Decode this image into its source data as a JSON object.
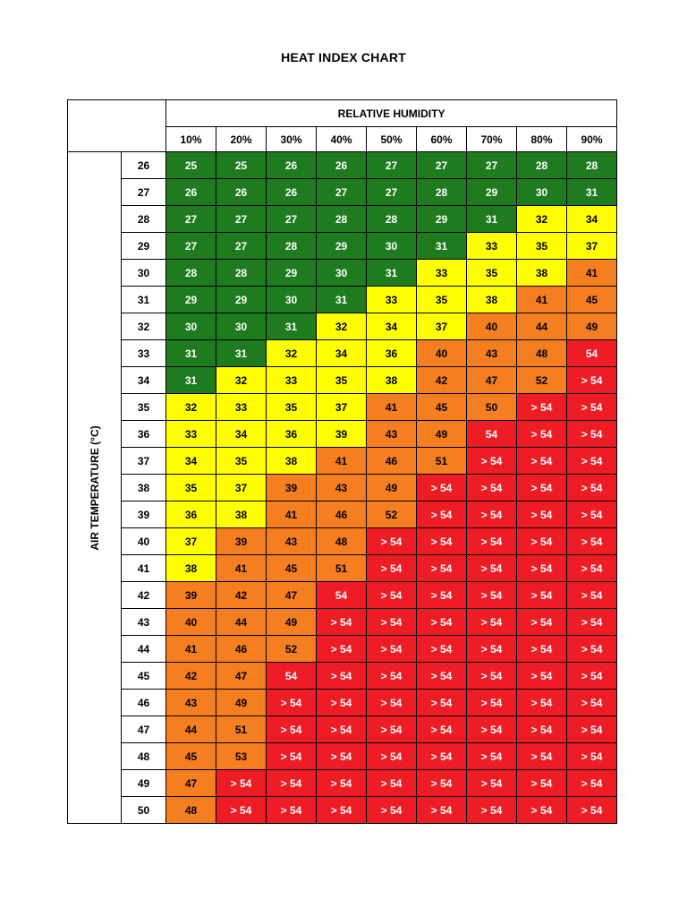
{
  "title": "HEAT INDEX CHART",
  "table": {
    "humidity_header": "RELATIVE HUMIDITY"
  },
  "chart_data": {
    "type": "heatmap",
    "title": "HEAT INDEX CHART",
    "xlabel": "RELATIVE HUMIDITY",
    "ylabel": "AIR TEMPERATURE (°C)",
    "humidities": [
      "10%",
      "20%",
      "30%",
      "40%",
      "50%",
      "60%",
      "70%",
      "80%",
      "90%"
    ],
    "temperatures": [
      26,
      27,
      28,
      29,
      30,
      31,
      32,
      33,
      34,
      35,
      36,
      37,
      38,
      39,
      40,
      41,
      42,
      43,
      44,
      45,
      46,
      47,
      48,
      49,
      50
    ],
    "values": [
      [
        25,
        25,
        26,
        26,
        27,
        27,
        27,
        28,
        28
      ],
      [
        26,
        26,
        26,
        27,
        27,
        28,
        29,
        30,
        31
      ],
      [
        27,
        27,
        27,
        28,
        28,
        29,
        31,
        32,
        34
      ],
      [
        27,
        27,
        28,
        29,
        30,
        31,
        33,
        35,
        37
      ],
      [
        28,
        28,
        29,
        30,
        31,
        33,
        35,
        38,
        41
      ],
      [
        29,
        29,
        30,
        31,
        33,
        35,
        38,
        41,
        45
      ],
      [
        30,
        30,
        31,
        32,
        34,
        37,
        40,
        44,
        49
      ],
      [
        31,
        31,
        32,
        34,
        36,
        40,
        43,
        48,
        54
      ],
      [
        31,
        32,
        33,
        35,
        38,
        42,
        47,
        52,
        "> 54"
      ],
      [
        32,
        33,
        35,
        37,
        41,
        45,
        50,
        "> 54",
        "> 54"
      ],
      [
        33,
        34,
        36,
        39,
        43,
        49,
        54,
        "> 54",
        "> 54"
      ],
      [
        34,
        35,
        38,
        41,
        46,
        51,
        "> 54",
        "> 54",
        "> 54"
      ],
      [
        35,
        37,
        39,
        43,
        49,
        "> 54",
        "> 54",
        "> 54",
        "> 54"
      ],
      [
        36,
        38,
        41,
        46,
        52,
        "> 54",
        "> 54",
        "> 54",
        "> 54"
      ],
      [
        37,
        39,
        43,
        48,
        "> 54",
        "> 54",
        "> 54",
        "> 54",
        "> 54"
      ],
      [
        38,
        41,
        45,
        51,
        "> 54",
        "> 54",
        "> 54",
        "> 54",
        "> 54"
      ],
      [
        39,
        42,
        47,
        54,
        "> 54",
        "> 54",
        "> 54",
        "> 54",
        "> 54"
      ],
      [
        40,
        44,
        49,
        "> 54",
        "> 54",
        "> 54",
        "> 54",
        "> 54",
        "> 54"
      ],
      [
        41,
        46,
        52,
        "> 54",
        "> 54",
        "> 54",
        "> 54",
        "> 54",
        "> 54"
      ],
      [
        42,
        47,
        54,
        "> 54",
        "> 54",
        "> 54",
        "> 54",
        "> 54",
        "> 54"
      ],
      [
        43,
        49,
        "> 54",
        "> 54",
        "> 54",
        "> 54",
        "> 54",
        "> 54",
        "> 54"
      ],
      [
        44,
        51,
        "> 54",
        "> 54",
        "> 54",
        "> 54",
        "> 54",
        "> 54",
        "> 54"
      ],
      [
        45,
        53,
        "> 54",
        "> 54",
        "> 54",
        "> 54",
        "> 54",
        "> 54",
        "> 54"
      ],
      [
        47,
        "> 54",
        "> 54",
        "> 54",
        "> 54",
        "> 54",
        "> 54",
        "> 54",
        "> 54"
      ],
      [
        48,
        "> 54",
        "> 54",
        "> 54",
        "> 54",
        "> 54",
        "> 54",
        "> 54",
        "> 54"
      ]
    ],
    "colors": [
      "ggggggggg",
      "ggggggggg",
      "gggggggyy",
      "ggggggyyy",
      "gggggyyyo",
      "ggggyyyoo",
      "gggyyyooo",
      "ggyyyooor",
      "gyyyyooor",
      "yyyyooorr",
      "yyyyoorrr",
      "yyyooorrr",
      "yyooorrrr",
      "yyooorrrr",
      "yooorrrrr",
      "yooorrrrr",
      "ooorrrrrr",
      "ooorrrrrr",
      "ooorrrrrr",
      "oorrrrrrr",
      "oorrrrrrr",
      "oorrrrrrr",
      "oorrrrrrr",
      "orrrrrrrr",
      "orrrrrrrr"
    ],
    "cell_fill": {
      "g": "#1e7c1e",
      "y": "#ffff00",
      "o": "#f57e20",
      "r": "#ee1c24"
    },
    "cell_text": {
      "g": "#ffffff",
      "y": "#000000",
      "o": "#000000",
      "r": "#ffffff"
    }
  }
}
